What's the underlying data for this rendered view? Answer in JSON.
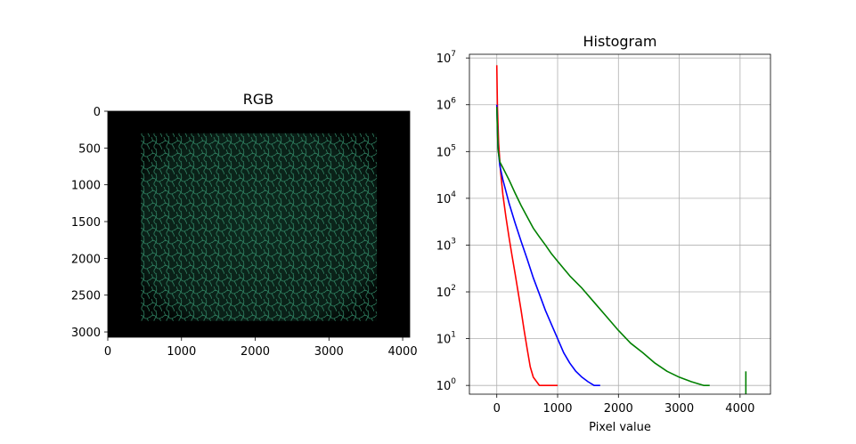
{
  "chart_data": [
    {
      "type": "image",
      "title": "RGB",
      "xlim": [
        0,
        4096
      ],
      "ylim": [
        3072,
        0
      ],
      "x_ticks": [
        0,
        1000,
        2000,
        3000,
        4000
      ],
      "y_ticks": [
        0,
        500,
        1000,
        1500,
        2000,
        2500,
        3000
      ],
      "content_extent": {
        "x": [
          450,
          3650
        ],
        "y": [
          300,
          2850
        ]
      },
      "colors": {
        "background": "#000000",
        "cells": "#2e8a62"
      }
    },
    {
      "type": "line",
      "title": "Histogram",
      "xlabel": "Pixel value",
      "ylabel": "",
      "yscale": "log",
      "xlim": [
        -450,
        4500
      ],
      "ylim": [
        0.65,
        12000000
      ],
      "x_ticks": [
        0,
        1000,
        2000,
        3000,
        4000
      ],
      "y_ticks": [
        {
          "value": 1,
          "label": "10",
          "exp": "0"
        },
        {
          "value": 10,
          "label": "10",
          "exp": "1"
        },
        {
          "value": 100,
          "label": "10",
          "exp": "2"
        },
        {
          "value": 1000,
          "label": "10",
          "exp": "3"
        },
        {
          "value": 10000,
          "label": "10",
          "exp": "4"
        },
        {
          "value": 100000,
          "label": "10",
          "exp": "5"
        },
        {
          "value": 1000000,
          "label": "10",
          "exp": "6"
        },
        {
          "value": 10000000,
          "label": "10",
          "exp": "7"
        }
      ],
      "grid": true,
      "series": [
        {
          "color": "#ff0000",
          "x": [
            0,
            10,
            30,
            60,
            100,
            150,
            200,
            250,
            300,
            350,
            400,
            450,
            500,
            550,
            600,
            700,
            800,
            900,
            1000
          ],
          "y": [
            7000000,
            1000000,
            150000,
            40000,
            12000,
            4000,
            1500,
            600,
            250,
            100,
            40,
            15,
            6,
            2.5,
            1.5,
            1,
            1,
            1,
            1
          ]
        },
        {
          "color": "#0000ff",
          "x": [
            0,
            20,
            50,
            100,
            200,
            300,
            400,
            500,
            600,
            700,
            800,
            900,
            1000,
            1100,
            1200,
            1300,
            1400,
            1500,
            1600,
            1700
          ],
          "y": [
            1000000,
            120000,
            50000,
            25000,
            8000,
            3000,
            1200,
            500,
            200,
            90,
            40,
            20,
            10,
            5,
            3,
            2,
            1.5,
            1.2,
            1,
            1
          ]
        },
        {
          "color": "#008000",
          "x": [
            0,
            20,
            50,
            100,
            200,
            300,
            400,
            500,
            600,
            700,
            800,
            900,
            1000,
            1200,
            1400,
            1600,
            1800,
            2000,
            2200,
            2400,
            2600,
            2800,
            3000,
            3200,
            3400,
            3500
          ],
          "y": [
            900000,
            110000,
            60000,
            45000,
            25000,
            13000,
            7000,
            4000,
            2300,
            1500,
            1000,
            650,
            450,
            220,
            120,
            60,
            30,
            15,
            8,
            5,
            3,
            2,
            1.5,
            1.2,
            1,
            1
          ]
        }
      ],
      "annotations": [
        {
          "color": "#008000",
          "x": 4095,
          "y": 2
        }
      ]
    }
  ]
}
